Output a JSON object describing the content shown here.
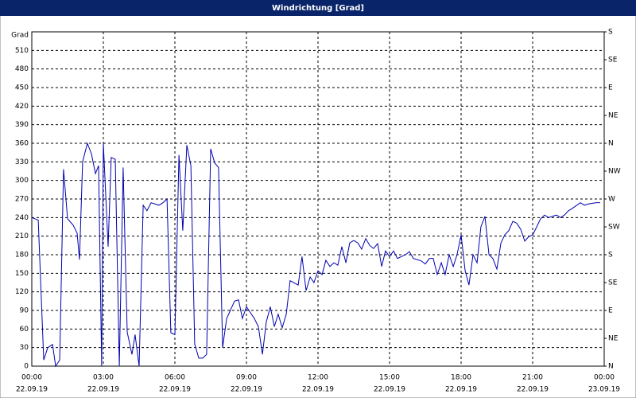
{
  "chart_data": {
    "type": "line",
    "title": "Windrichtung [Grad]",
    "y_label": "Grad",
    "x": [
      0,
      0.27,
      0.5,
      0.67,
      0.87,
      1.0,
      1.17,
      1.33,
      1.5,
      1.73,
      1.9,
      2.0,
      2.13,
      2.33,
      2.5,
      2.67,
      2.8,
      2.93,
      3.0,
      3.2,
      3.33,
      3.5,
      3.67,
      3.83,
      4.0,
      4.2,
      4.33,
      4.5,
      4.67,
      4.83,
      5.0,
      5.33,
      5.5,
      5.67,
      5.83,
      6.0,
      6.17,
      6.33,
      6.5,
      6.67,
      6.83,
      7.0,
      7.17,
      7.33,
      7.5,
      7.67,
      7.83,
      8.0,
      8.17,
      8.5,
      8.67,
      8.83,
      9.0,
      9.33,
      9.5,
      9.67,
      9.83,
      10.0,
      10.17,
      10.33,
      10.5,
      10.67,
      10.83,
      11.17,
      11.33,
      11.5,
      11.67,
      11.83,
      12.0,
      12.17,
      12.33,
      12.5,
      12.67,
      12.83,
      13.0,
      13.17,
      13.33,
      13.5,
      13.67,
      13.83,
      14.0,
      14.17,
      14.33,
      14.5,
      14.67,
      14.83,
      15.0,
      15.17,
      15.33,
      15.5,
      15.67,
      15.83,
      16.0,
      16.33,
      16.5,
      16.67,
      16.83,
      17.0,
      17.17,
      17.33,
      17.5,
      17.67,
      17.83,
      18.0,
      18.17,
      18.33,
      18.5,
      18.67,
      18.83,
      19.0,
      19.17,
      19.33,
      19.5,
      19.67,
      19.83,
      20.0,
      20.17,
      20.33,
      20.5,
      20.67,
      20.83,
      21.0,
      21.17,
      21.33,
      21.5,
      21.67,
      21.83,
      22.0,
      22.17,
      22.33,
      22.5,
      22.67,
      23.0,
      23.17,
      23.33,
      23.67,
      23.83
    ],
    "series": [
      {
        "color": "#0000b0",
        "values": [
          240,
          236,
          10,
          30,
          35,
          0,
          10,
          318,
          238,
          228,
          215,
          172,
          330,
          360,
          343,
          311,
          324,
          0,
          360,
          193,
          337,
          334,
          0,
          321,
          55,
          19,
          51,
          0,
          260,
          251,
          264,
          260,
          264,
          270,
          54,
          51,
          341,
          219,
          357,
          324,
          36,
          13,
          13,
          19,
          351,
          328,
          321,
          30,
          77,
          105,
          107,
          77,
          96,
          77,
          64,
          19,
          71,
          96,
          64,
          84,
          62,
          84,
          138,
          131,
          177,
          122,
          144,
          135,
          154,
          148,
          171,
          161,
          167,
          163,
          193,
          167,
          199,
          203,
          199,
          189,
          206,
          195,
          190,
          198,
          161,
          186,
          177,
          186,
          174,
          177,
          180,
          185,
          174,
          170,
          165,
          174,
          174,
          148,
          167,
          148,
          180,
          161,
          180,
          212,
          154,
          131,
          180,
          167,
          225,
          242,
          180,
          174,
          157,
          199,
          212,
          219,
          234,
          231,
          221,
          202,
          209,
          212,
          225,
          238,
          244,
          240,
          242,
          244,
          240,
          244,
          251,
          255,
          264,
          260,
          262,
          264,
          264
        ]
      }
    ],
    "xlim": [
      0,
      24
    ],
    "xticks": [
      {
        "value": 0,
        "label": "00:00"
      },
      {
        "value": 3,
        "label": "03:00"
      },
      {
        "value": 6,
        "label": "06:00"
      },
      {
        "value": 9,
        "label": "09:00"
      },
      {
        "value": 12,
        "label": "12:00"
      },
      {
        "value": 15,
        "label": "15:00"
      },
      {
        "value": 18,
        "label": "18:00"
      },
      {
        "value": 21,
        "label": "21:00"
      },
      {
        "value": 24,
        "label": "00:00"
      }
    ],
    "xtick_dates": [
      "22.09.19",
      "22.09.19",
      "22.09.19",
      "22.09.19",
      "22.09.19",
      "22.09.19",
      "22.09.19",
      "22.09.19",
      "23.09.19"
    ],
    "ylim": [
      0,
      540
    ],
    "yticks": [
      0,
      30,
      60,
      90,
      120,
      150,
      180,
      210,
      240,
      270,
      300,
      330,
      360,
      390,
      420,
      450,
      480,
      510
    ],
    "y2lim": [
      0,
      540
    ],
    "y2ticks": [
      {
        "value": 0,
        "label": "N"
      },
      {
        "value": 45,
        "label": "NE"
      },
      {
        "value": 90,
        "label": "E"
      },
      {
        "value": 135,
        "label": "SE"
      },
      {
        "value": 180,
        "label": "S"
      },
      {
        "value": 225,
        "label": "SW"
      },
      {
        "value": 270,
        "label": "W"
      },
      {
        "value": 315,
        "label": "NW"
      },
      {
        "value": 360,
        "label": "N"
      },
      {
        "value": 405,
        "label": "NE"
      },
      {
        "value": 450,
        "label": "E"
      },
      {
        "value": 495,
        "label": "SE"
      },
      {
        "value": 540,
        "label": "S"
      }
    ],
    "grid": true
  }
}
